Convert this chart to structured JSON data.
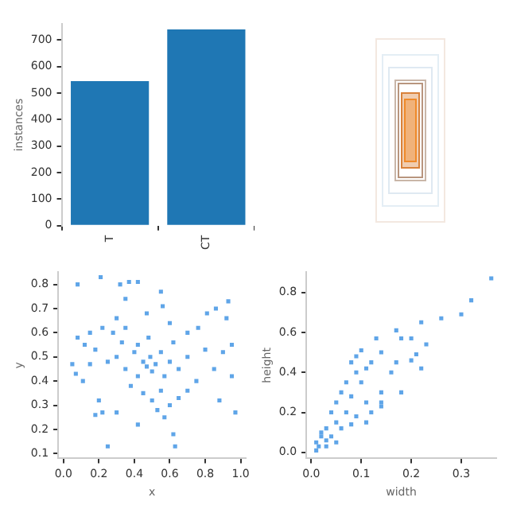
{
  "chart_data": [
    {
      "type": "bar",
      "ylabel": "instances",
      "categories": [
        "T",
        "CT"
      ],
      "values": [
        545,
        740
      ],
      "color": "#1f77b4",
      "ylim": [
        0,
        760
      ],
      "yticks": [
        0,
        100,
        200,
        300,
        400,
        500,
        600,
        700
      ],
      "grid": false,
      "legend": false
    },
    {
      "type": "scatter",
      "xlabel": "x",
      "ylabel": "y",
      "marker": "square",
      "color": "#5fa5e8",
      "grid": false,
      "legend": false,
      "xlim": [
        -0.03,
        1.03
      ],
      "ylim": [
        0.08,
        0.85
      ],
      "xticks": [
        {
          "value": 0,
          "label": "0.0"
        },
        {
          "value": 0.2,
          "label": "0.2"
        },
        {
          "value": 0.4,
          "label": "0.4"
        },
        {
          "value": 0.6,
          "label": "0.6"
        },
        {
          "value": 0.8,
          "label": "0.8"
        },
        {
          "value": 1,
          "label": "1.0"
        }
      ],
      "yticks": [
        0.1,
        0.2,
        0.3,
        0.4,
        0.5,
        0.6,
        0.7,
        0.8
      ],
      "x": [
        0.08,
        0.21,
        0.32,
        0.37,
        0.42,
        0.35,
        0.55,
        0.56,
        0.93,
        0.86,
        0.81,
        0.92,
        0.3,
        0.47,
        0.22,
        0.15,
        0.08,
        0.12,
        0.18,
        0.28,
        0.35,
        0.6,
        0.7,
        0.76,
        0.95,
        0.9,
        0.85,
        0.95,
        0.05,
        0.07,
        0.11,
        0.15,
        0.25,
        0.3,
        0.35,
        0.4,
        0.42,
        0.45,
        0.47,
        0.49,
        0.5,
        0.52,
        0.55,
        0.57,
        0.6,
        0.65,
        0.7,
        0.75,
        0.8,
        0.38,
        0.45,
        0.5,
        0.55,
        0.6,
        0.65,
        0.2,
        0.18,
        0.22,
        0.3,
        0.42,
        0.53,
        0.57,
        0.62,
        0.63,
        0.25,
        0.7,
        0.97,
        0.88,
        0.42,
        0.48,
        0.33,
        0.62
      ],
      "values": [
        0.8,
        0.83,
        0.8,
        0.81,
        0.81,
        0.74,
        0.77,
        0.71,
        0.73,
        0.7,
        0.68,
        0.66,
        0.66,
        0.68,
        0.62,
        0.6,
        0.58,
        0.55,
        0.53,
        0.6,
        0.62,
        0.64,
        0.6,
        0.62,
        0.55,
        0.52,
        0.45,
        0.42,
        0.47,
        0.43,
        0.4,
        0.47,
        0.48,
        0.5,
        0.45,
        0.52,
        0.42,
        0.48,
        0.46,
        0.5,
        0.44,
        0.47,
        0.52,
        0.42,
        0.48,
        0.45,
        0.5,
        0.4,
        0.53,
        0.38,
        0.35,
        0.32,
        0.36,
        0.3,
        0.33,
        0.32,
        0.26,
        0.27,
        0.27,
        0.22,
        0.28,
        0.25,
        0.18,
        0.13,
        0.13,
        0.36,
        0.27,
        0.32,
        0.55,
        0.58,
        0.56,
        0.56
      ]
    },
    {
      "type": "scatter",
      "xlabel": "width",
      "ylabel": "height",
      "marker": "square",
      "color": "#5fa5e8",
      "grid": false,
      "legend": false,
      "xlim": [
        -0.01,
        0.37
      ],
      "ylim": [
        -0.03,
        0.9
      ],
      "xticks": [
        {
          "value": 0,
          "label": "0.0"
        },
        0.1,
        0.2,
        0.3
      ],
      "yticks": [
        {
          "value": 0,
          "label": "0.0"
        },
        0.2,
        0.4,
        0.6,
        0.8
      ],
      "x": [
        0.36,
        0.32,
        0.3,
        0.26,
        0.22,
        0.23,
        0.21,
        0.2,
        0.22,
        0.17,
        0.13,
        0.18,
        0.2,
        0.14,
        0.17,
        0.12,
        0.16,
        0.18,
        0.14,
        0.14,
        0.14,
        0.1,
        0.09,
        0.08,
        0.11,
        0.09,
        0.1,
        0.07,
        0.06,
        0.08,
        0.11,
        0.05,
        0.04,
        0.07,
        0.09,
        0.05,
        0.03,
        0.06,
        0.02,
        0.01,
        0.015,
        0.03,
        0.02,
        0.04,
        0.01,
        0.03,
        0.12,
        0.11,
        0.08,
        0.05
      ],
      "values": [
        0.87,
        0.76,
        0.69,
        0.67,
        0.65,
        0.54,
        0.49,
        0.46,
        0.42,
        0.61,
        0.57,
        0.57,
        0.57,
        0.5,
        0.45,
        0.45,
        0.4,
        0.3,
        0.3,
        0.25,
        0.23,
        0.51,
        0.48,
        0.45,
        0.42,
        0.4,
        0.35,
        0.35,
        0.3,
        0.28,
        0.25,
        0.25,
        0.2,
        0.2,
        0.18,
        0.15,
        0.12,
        0.12,
        0.08,
        0.05,
        0.03,
        0.06,
        0.1,
        0.08,
        0.01,
        0.03,
        0.2,
        0.15,
        0.14,
        0.05
      ]
    }
  ]
}
